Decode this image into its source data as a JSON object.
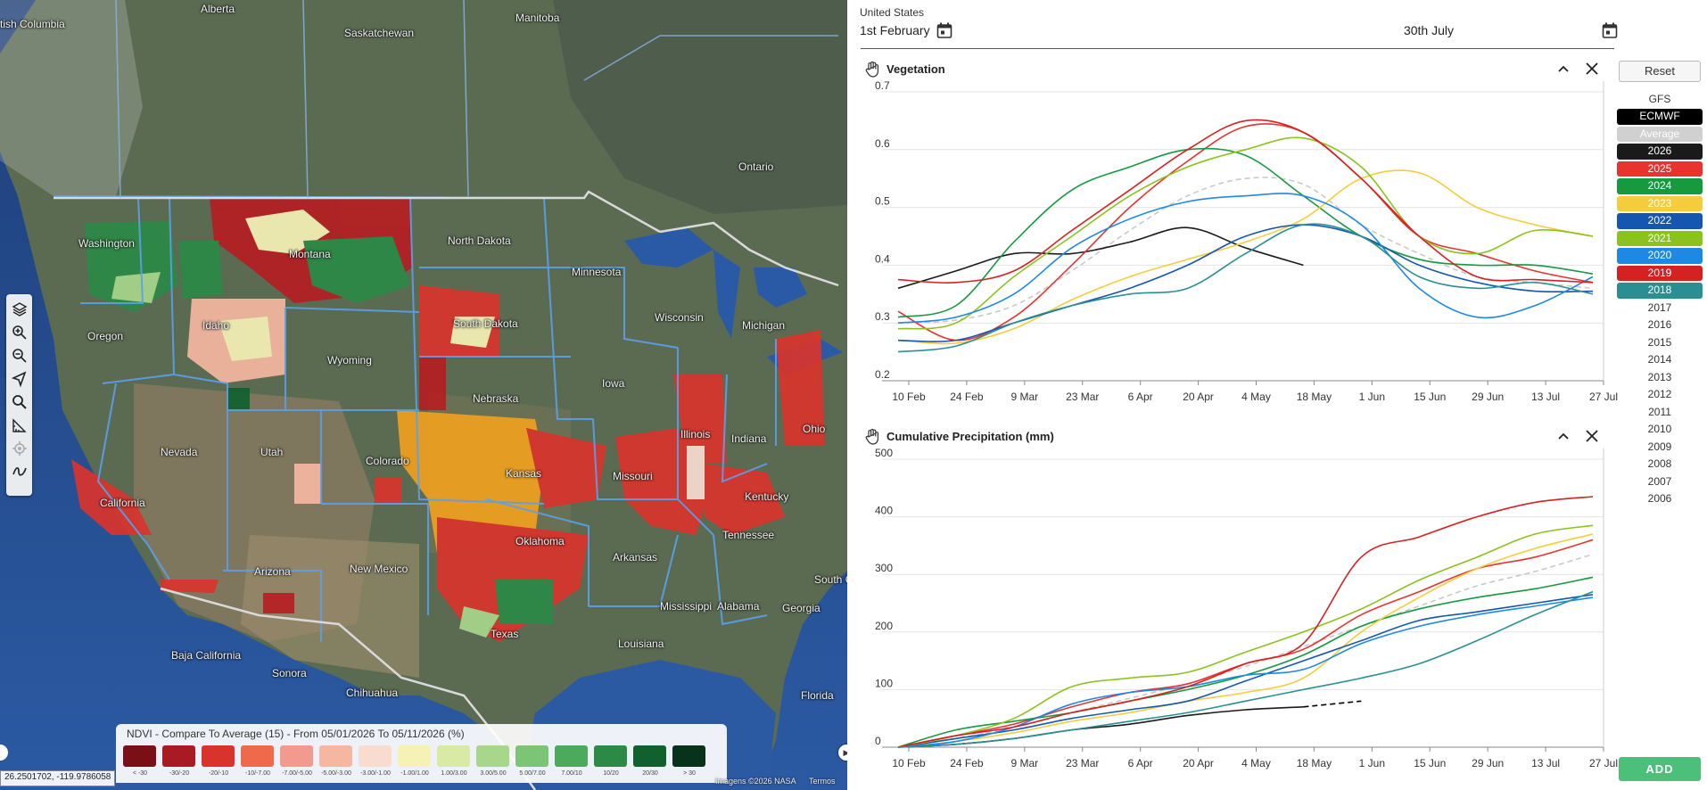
{
  "map": {
    "labels": [
      {
        "text": "Alberta",
        "x": 225,
        "y": 3
      },
      {
        "text": "Manitoba",
        "x": 578,
        "y": 13
      },
      {
        "text": "tish Columbia",
        "x": 0,
        "y": 20
      },
      {
        "text": "Saskatchewan",
        "x": 386,
        "y": 30
      },
      {
        "text": "Ontario",
        "x": 828,
        "y": 180
      },
      {
        "text": "North Dakota",
        "x": 502,
        "y": 263
      },
      {
        "text": "Washington",
        "x": 88,
        "y": 266
      },
      {
        "text": "Montana",
        "x": 324,
        "y": 278
      },
      {
        "text": "Minnesota",
        "x": 641,
        "y": 298
      },
      {
        "text": "South Dakota",
        "x": 508,
        "y": 356
      },
      {
        "text": "Wisconsin",
        "x": 734,
        "y": 349
      },
      {
        "text": "Michigan",
        "x": 832,
        "y": 358
      },
      {
        "text": "Idaho",
        "x": 227,
        "y": 358
      },
      {
        "text": "Oregon",
        "x": 98,
        "y": 370
      },
      {
        "text": "Wyoming",
        "x": 367,
        "y": 397
      },
      {
        "text": "Iowa",
        "x": 675,
        "y": 423
      },
      {
        "text": "Nebraska",
        "x": 530,
        "y": 440
      },
      {
        "text": "Nevada",
        "x": 180,
        "y": 500
      },
      {
        "text": "Utah",
        "x": 292,
        "y": 500
      },
      {
        "text": "Colorado",
        "x": 410,
        "y": 510
      },
      {
        "text": "Illinois",
        "x": 763,
        "y": 480
      },
      {
        "text": "Indiana",
        "x": 820,
        "y": 485
      },
      {
        "text": "Ohio",
        "x": 900,
        "y": 474
      },
      {
        "text": "Kansas",
        "x": 567,
        "y": 524
      },
      {
        "text": "Missouri",
        "x": 687,
        "y": 527
      },
      {
        "text": "Kentucky",
        "x": 835,
        "y": 550
      },
      {
        "text": "California",
        "x": 112,
        "y": 557
      },
      {
        "text": "Tennessee",
        "x": 810,
        "y": 593
      },
      {
        "text": "Oklahoma",
        "x": 578,
        "y": 600
      },
      {
        "text": "Arkansas",
        "x": 687,
        "y": 618
      },
      {
        "text": "Arizona",
        "x": 285,
        "y": 634
      },
      {
        "text": "New Mexico",
        "x": 392,
        "y": 631
      },
      {
        "text": "South C",
        "x": 913,
        "y": 643
      },
      {
        "text": "Mississippi",
        "x": 740,
        "y": 673
      },
      {
        "text": "Alabama",
        "x": 804,
        "y": 673
      },
      {
        "text": "Georgia",
        "x": 877,
        "y": 675
      },
      {
        "text": "Texas",
        "x": 550,
        "y": 704
      },
      {
        "text": "Louisiana",
        "x": 693,
        "y": 715
      },
      {
        "text": "Baja California",
        "x": 192,
        "y": 728
      },
      {
        "text": "Sonora",
        "x": 305,
        "y": 748
      },
      {
        "text": "Chihuahua",
        "x": 388,
        "y": 770
      },
      {
        "text": "Florida",
        "x": 898,
        "y": 773
      }
    ],
    "tools": [
      "layers-icon",
      "zoom-in-icon",
      "zoom-out-icon",
      "navigate-icon",
      "search-icon",
      "measure-icon",
      "locate-icon",
      "draw-icon"
    ],
    "legend": {
      "title": "NDVI - Compare To Average (15) - From 05/01/2026 To 05/11/2026 (%)",
      "bins": [
        {
          "label": "< -30",
          "color": "#7b0f17"
        },
        {
          "label": "-30/-20",
          "color": "#a81b22"
        },
        {
          "label": "-20/-10",
          "color": "#d9342c"
        },
        {
          "label": "-10/-7.00",
          "color": "#ef6a4a"
        },
        {
          "label": "-7.00/-5.00",
          "color": "#f29a8e"
        },
        {
          "label": "-5.00/-3.00",
          "color": "#f6b7a1"
        },
        {
          "label": "-3.00/-1.00",
          "color": "#f8dccf"
        },
        {
          "label": "-1.00/1.00",
          "color": "#f6f2b6"
        },
        {
          "label": "1.00/3.00",
          "color": "#d9eaa5"
        },
        {
          "label": "3.00/5.00",
          "color": "#a8d68b"
        },
        {
          "label": "5.00/7.00",
          "color": "#7cc576"
        },
        {
          "label": "7.00/10",
          "color": "#4caa5c"
        },
        {
          "label": "10/20",
          "color": "#2b8a45"
        },
        {
          "label": "20/30",
          "color": "#11612f"
        },
        {
          "label": "> 30",
          "color": "#07331b"
        }
      ]
    },
    "coords": "26.2501702, -119.9786058",
    "attribution": [
      "Imagens ©2026 NASA",
      "Termos"
    ]
  },
  "panel": {
    "region": "United States",
    "date_start": "1st February",
    "date_end": "30th July",
    "reset_label": "Reset",
    "add_label": "ADD",
    "legend_items": [
      {
        "label": "GFS",
        "bg": "",
        "fg": "#333"
      },
      {
        "label": "ECMWF",
        "bg": "#000000",
        "fg": "#fff"
      },
      {
        "label": "Average",
        "bg": "#d0d0d0",
        "fg": "#fff"
      },
      {
        "label": "2026",
        "bg": "#1a1a1a",
        "fg": "#fff"
      },
      {
        "label": "2025",
        "bg": "#e8332e",
        "fg": "#fff"
      },
      {
        "label": "2024",
        "bg": "#16993f",
        "fg": "#fff"
      },
      {
        "label": "2023",
        "bg": "#f5cd3c",
        "fg": "#fff"
      },
      {
        "label": "2022",
        "bg": "#1557b0",
        "fg": "#fff"
      },
      {
        "label": "2021",
        "bg": "#8bc21d",
        "fg": "#fff"
      },
      {
        "label": "2020",
        "bg": "#1e88e5",
        "fg": "#fff"
      },
      {
        "label": "2019",
        "bg": "#d52220",
        "fg": "#fff"
      },
      {
        "label": "2018",
        "bg": "#2a8f93",
        "fg": "#fff"
      },
      {
        "label": "2017",
        "bg": "",
        "fg": "#333"
      },
      {
        "label": "2016",
        "bg": "",
        "fg": "#333"
      },
      {
        "label": "2015",
        "bg": "",
        "fg": "#333"
      },
      {
        "label": "2014",
        "bg": "",
        "fg": "#333"
      },
      {
        "label": "2013",
        "bg": "",
        "fg": "#333"
      },
      {
        "label": "2012",
        "bg": "",
        "fg": "#333"
      },
      {
        "label": "2011",
        "bg": "",
        "fg": "#333"
      },
      {
        "label": "2010",
        "bg": "",
        "fg": "#333"
      },
      {
        "label": "2009",
        "bg": "",
        "fg": "#333"
      },
      {
        "label": "2008",
        "bg": "",
        "fg": "#333"
      },
      {
        "label": "2007",
        "bg": "",
        "fg": "#333"
      },
      {
        "label": "2006",
        "bg": "",
        "fg": "#333"
      }
    ]
  },
  "chart_data": [
    {
      "type": "line",
      "title": "Vegetation",
      "xlabel": "",
      "ylabel": "",
      "x_ticks": [
        "10 Feb",
        "24 Feb",
        "9 Mar",
        "23 Mar",
        "6 Apr",
        "20 Apr",
        "4 May",
        "18 May",
        "1 Jun",
        "15 Jun",
        "29 Jun",
        "13 Jul",
        "27 Jul"
      ],
      "y_ticks": [
        0.2,
        0.3,
        0.4,
        0.5,
        0.6,
        0.7
      ],
      "ylim": [
        0.2,
        0.7
      ],
      "x_dates": [
        "02-01",
        "02-15",
        "03-01",
        "03-15",
        "04-01",
        "04-15",
        "05-01",
        "05-15",
        "06-01",
        "06-15",
        "07-01",
        "07-15",
        "07-30"
      ],
      "series": [
        {
          "name": "Average",
          "color": "#c9c9c9",
          "dashed": true,
          "values": [
            0.3,
            0.305,
            0.33,
            0.39,
            0.46,
            0.52,
            0.55,
            0.54,
            0.47,
            0.42,
            0.38,
            0.37,
            0.36
          ]
        },
        {
          "name": "2026",
          "color": "#1a1a1a",
          "values": [
            0.36,
            0.39,
            0.42,
            0.42,
            0.44,
            0.465,
            0.43,
            0.4,
            null,
            null,
            null,
            null,
            null
          ]
        },
        {
          "name": "2025",
          "color": "#e8332e",
          "values": [
            0.32,
            0.27,
            0.31,
            0.4,
            0.5,
            0.58,
            0.64,
            0.63,
            0.55,
            0.45,
            0.42,
            0.39,
            0.37
          ]
        },
        {
          "name": "2024",
          "color": "#16993f",
          "values": [
            0.31,
            0.33,
            0.44,
            0.53,
            0.57,
            0.6,
            0.59,
            0.52,
            0.45,
            0.41,
            0.4,
            0.4,
            0.385
          ]
        },
        {
          "name": "2023",
          "color": "#f5cd3c",
          "values": [
            0.27,
            0.265,
            0.29,
            0.34,
            0.38,
            0.41,
            0.44,
            0.48,
            0.55,
            0.56,
            0.5,
            0.47,
            0.45
          ]
        },
        {
          "name": "2022",
          "color": "#1557b0",
          "values": [
            0.27,
            0.27,
            0.3,
            0.33,
            0.36,
            0.4,
            0.45,
            0.47,
            0.45,
            0.4,
            0.37,
            0.355,
            0.355
          ]
        },
        {
          "name": "2021",
          "color": "#8bc21d",
          "values": [
            0.29,
            0.3,
            0.38,
            0.45,
            0.52,
            0.57,
            0.6,
            0.62,
            0.57,
            0.45,
            0.42,
            0.46,
            0.45
          ]
        },
        {
          "name": "2020",
          "color": "#1e88e5",
          "values": [
            0.3,
            0.31,
            0.35,
            0.43,
            0.48,
            0.51,
            0.52,
            0.52,
            0.47,
            0.36,
            0.31,
            0.33,
            0.38
          ]
        },
        {
          "name": "2019",
          "color": "#d52220",
          "values": [
            0.375,
            0.37,
            0.39,
            0.46,
            0.53,
            0.6,
            0.65,
            0.63,
            0.55,
            0.45,
            0.38,
            0.375,
            0.37
          ]
        },
        {
          "name": "2018",
          "color": "#2a8f93",
          "values": [
            0.25,
            0.26,
            0.3,
            0.33,
            0.35,
            0.36,
            0.42,
            0.47,
            0.45,
            0.38,
            0.36,
            0.37,
            0.35
          ]
        }
      ]
    },
    {
      "type": "line",
      "title": "Cumulative Precipitation (mm)",
      "xlabel": "",
      "ylabel": "",
      "x_ticks": [
        "10 Feb",
        "24 Feb",
        "9 Mar",
        "23 Mar",
        "6 Apr",
        "20 Apr",
        "4 May",
        "18 May",
        "1 Jun",
        "15 Jun",
        "29 Jun",
        "13 Jul",
        "27 Jul"
      ],
      "y_ticks": [
        0,
        100,
        200,
        300,
        400,
        500
      ],
      "ylim": [
        0,
        500
      ],
      "x_dates": [
        "02-01",
        "02-15",
        "03-01",
        "03-15",
        "04-01",
        "04-15",
        "05-01",
        "05-15",
        "06-01",
        "06-15",
        "07-01",
        "07-15",
        "07-30"
      ],
      "series": [
        {
          "name": "Average",
          "color": "#c9c9c9",
          "dashed": true,
          "values": [
            0,
            15,
            35,
            60,
            85,
            110,
            140,
            175,
            210,
            245,
            280,
            305,
            335
          ]
        },
        {
          "name": "2026",
          "color": "#1a1a1a",
          "values": [
            0,
            5,
            15,
            30,
            40,
            55,
            65,
            70,
            null,
            null,
            null,
            null,
            null
          ]
        },
        {
          "name": "ECMWF",
          "color": "#000000",
          "dashed": true,
          "values": [
            null,
            null,
            null,
            null,
            null,
            null,
            null,
            70,
            80,
            null,
            null,
            null,
            null
          ]
        },
        {
          "name": "2025",
          "color": "#e8332e",
          "values": [
            0,
            20,
            40,
            70,
            95,
            110,
            145,
            170,
            230,
            270,
            310,
            330,
            360
          ]
        },
        {
          "name": "2024",
          "color": "#16993f",
          "values": [
            0,
            30,
            45,
            60,
            80,
            100,
            125,
            160,
            210,
            240,
            260,
            275,
            295
          ]
        },
        {
          "name": "2023",
          "color": "#f5cd3c",
          "values": [
            0,
            10,
            25,
            45,
            60,
            80,
            95,
            120,
            200,
            260,
            310,
            345,
            370
          ]
        },
        {
          "name": "2022",
          "color": "#1557b0",
          "values": [
            0,
            15,
            30,
            50,
            65,
            80,
            115,
            150,
            185,
            220,
            235,
            250,
            265
          ]
        },
        {
          "name": "2021",
          "color": "#8bc21d",
          "values": [
            0,
            20,
            50,
            105,
            120,
            130,
            165,
            200,
            240,
            290,
            330,
            370,
            385
          ]
        },
        {
          "name": "2020",
          "color": "#1e88e5",
          "values": [
            0,
            10,
            35,
            75,
            95,
            105,
            125,
            135,
            180,
            210,
            230,
            245,
            260
          ]
        },
        {
          "name": "2019",
          "color": "#d52220",
          "values": [
            0,
            20,
            35,
            60,
            80,
            105,
            145,
            180,
            330,
            365,
            400,
            425,
            435
          ]
        },
        {
          "name": "2018",
          "color": "#2a8f93",
          "values": [
            0,
            5,
            15,
            30,
            45,
            60,
            80,
            100,
            120,
            145,
            185,
            230,
            270
          ]
        }
      ]
    }
  ]
}
